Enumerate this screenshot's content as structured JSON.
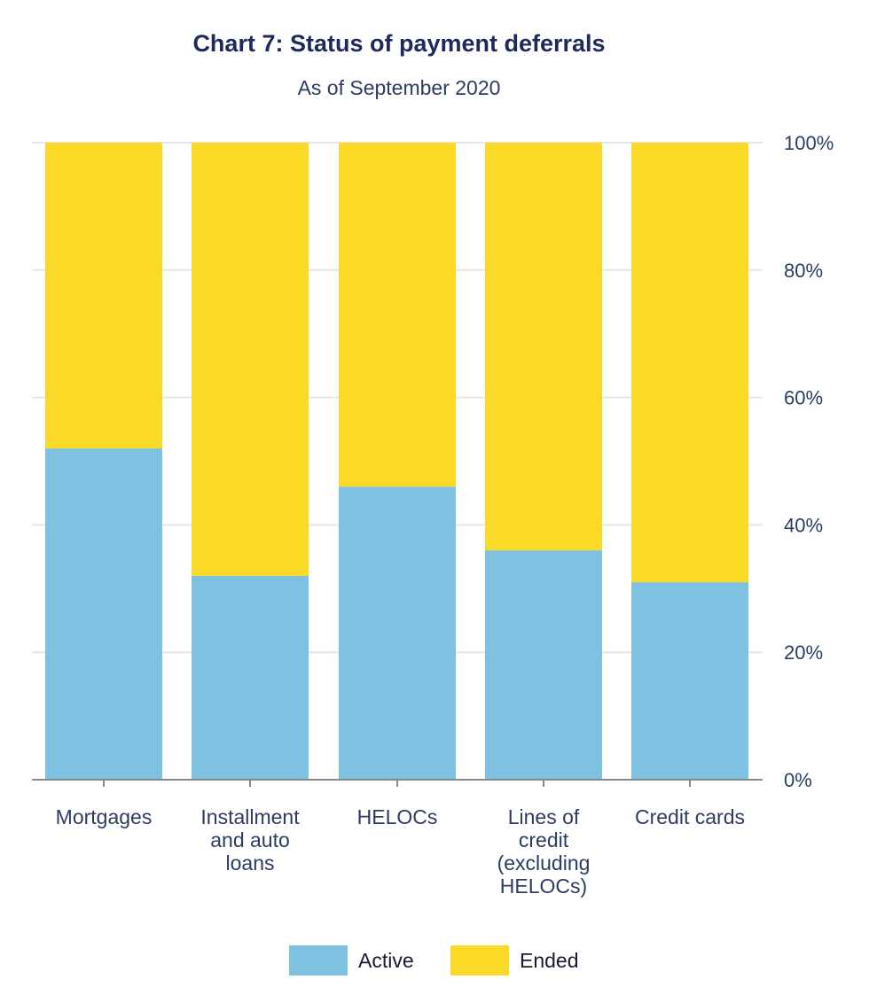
{
  "chart_data": {
    "type": "bar",
    "stacked": true,
    "title": "Chart 7: Status of payment deferrals",
    "subtitle": "As of September 2020",
    "categories": [
      [
        "Mortgages"
      ],
      [
        "Installment",
        "and auto",
        "loans"
      ],
      [
        "HELOCs"
      ],
      [
        "Lines of",
        "credit",
        "(excluding",
        "HELOCs)"
      ],
      [
        "Credit  cards"
      ]
    ],
    "series": [
      {
        "name": "Active",
        "color": "#7fc1e1",
        "values": [
          52,
          32,
          46,
          36,
          31
        ]
      },
      {
        "name": "Ended",
        "color": "#fad927",
        "values": [
          48,
          68,
          54,
          64,
          69
        ]
      }
    ],
    "ylim": [
      0,
      100
    ],
    "yticks": [
      "0%",
      "20%",
      "40%",
      "60%",
      "80%",
      "100%"
    ],
    "ytick_values": [
      0,
      20,
      40,
      60,
      80,
      100
    ],
    "y_axis_side": "right",
    "grid": true,
    "legend_position": "bottom"
  }
}
